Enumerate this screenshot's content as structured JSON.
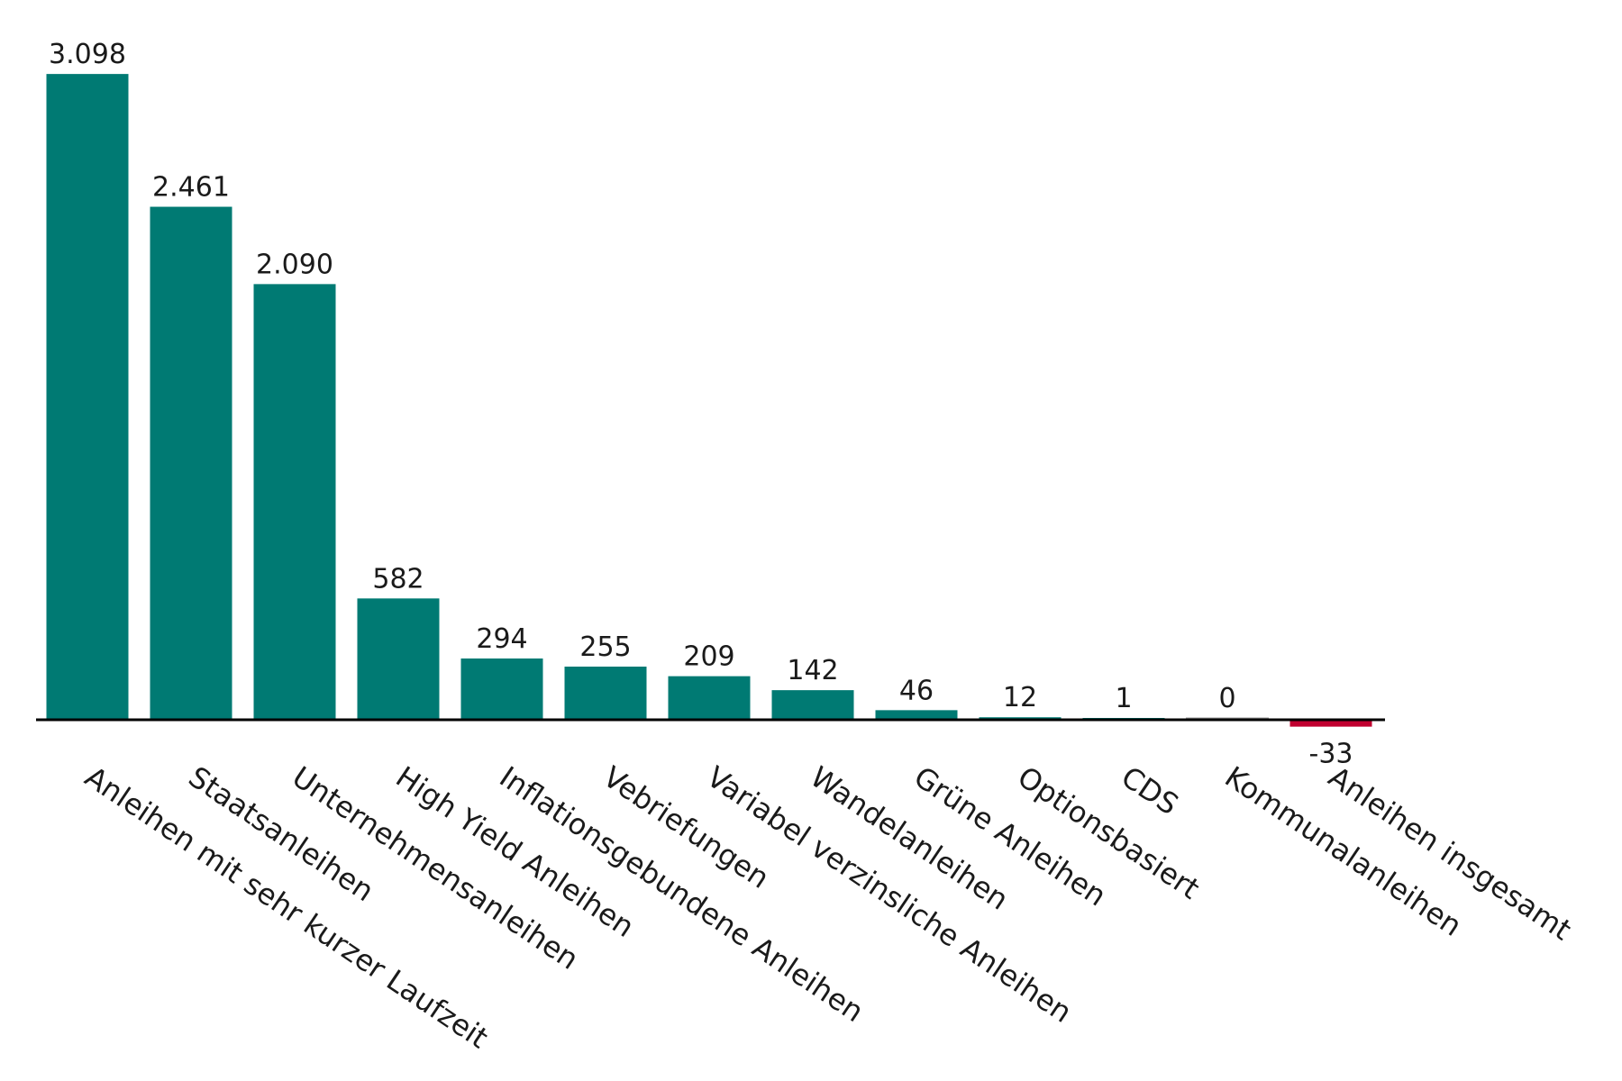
{
  "chart_data": {
    "type": "bar",
    "title": "",
    "xlabel": "",
    "ylabel": "",
    "categories": [
      "Anleihen mit sehr kurzer Laufzeit",
      "Staatsanleihen",
      "Unternehmensanleihen",
      "High Yield Anleihen",
      "Inflationsgebundene Anleihen",
      "Vebriefungen",
      "Variabel verzinsliche Anleihen",
      "Wandelanleihen",
      "Grüne Anleihen",
      "Optionsbasiert",
      "CDS",
      "Kommunalanleihen",
      "Anleihen insgesamt"
    ],
    "values": [
      3098,
      2461,
      2090,
      582,
      294,
      255,
      209,
      142,
      46,
      12,
      1,
      0,
      -33
    ],
    "value_labels": [
      "3.098",
      "2.461",
      "2.090",
      "582",
      "294",
      "255",
      "209",
      "142",
      "46",
      "12",
      "1",
      "0",
      "-33"
    ],
    "ylim": [
      -33,
      3098
    ],
    "grid": false,
    "legend": "none",
    "colors": {
      "positive": "#007A73",
      "negative": "#C0002F",
      "zero_outline": "#9a9a9a",
      "axis": "#000000",
      "text": "#1a1a1a"
    }
  }
}
